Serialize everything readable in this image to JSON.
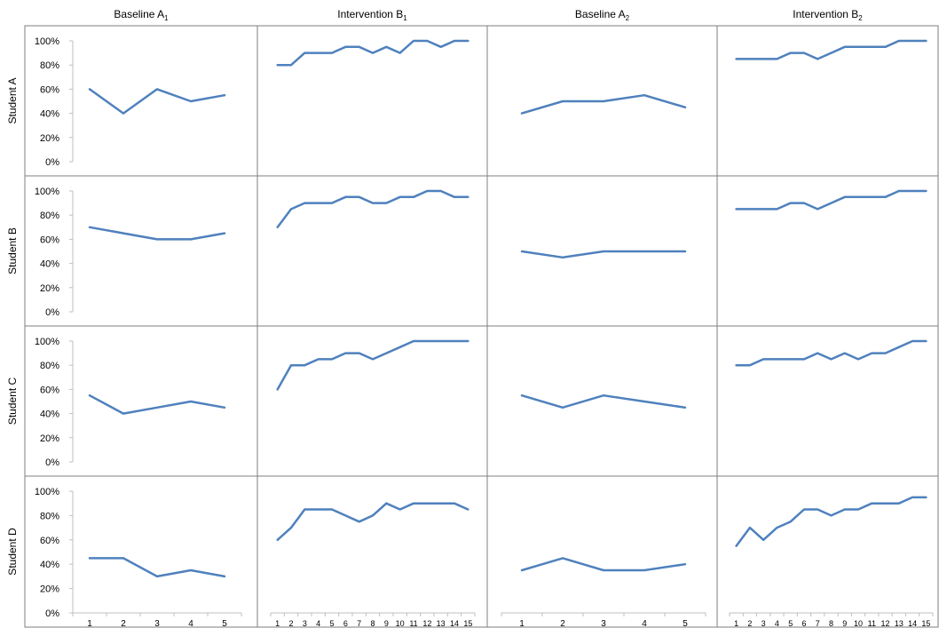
{
  "chart_data": {
    "type": "line",
    "y_ticks": [
      "0%",
      "20%",
      "40%",
      "60%",
      "80%",
      "100%"
    ],
    "ylim": [
      0,
      100
    ],
    "line_color": "#4f81bd",
    "columns": [
      {
        "title": "Baseline A",
        "sub": "1",
        "x": [
          1,
          2,
          3,
          4,
          5
        ]
      },
      {
        "title": "Intervention B",
        "sub": "1",
        "x": [
          1,
          2,
          3,
          4,
          5,
          6,
          7,
          8,
          9,
          10,
          11,
          12,
          13,
          14,
          15
        ]
      },
      {
        "title": "Baseline A",
        "sub": "2",
        "x": [
          1,
          2,
          3,
          4,
          5
        ]
      },
      {
        "title": "Intervention B",
        "sub": "2",
        "x": [
          1,
          2,
          3,
          4,
          5,
          6,
          7,
          8,
          9,
          10,
          11,
          12,
          13,
          14,
          15
        ]
      }
    ],
    "rows": [
      {
        "label": "Student A",
        "series": [
          [
            60,
            40,
            60,
            50,
            55
          ],
          [
            80,
            80,
            90,
            90,
            90,
            95,
            95,
            90,
            95,
            90,
            100,
            100,
            95,
            100,
            100
          ],
          [
            40,
            50,
            50,
            55,
            45
          ],
          [
            85,
            85,
            85,
            85,
            90,
            90,
            85,
            90,
            95,
            95,
            95,
            95,
            100,
            100,
            100
          ]
        ]
      },
      {
        "label": "Student B",
        "series": [
          [
            70,
            65,
            60,
            60,
            65
          ],
          [
            70,
            85,
            90,
            90,
            90,
            95,
            95,
            90,
            90,
            95,
            95,
            100,
            100,
            95,
            95
          ],
          [
            50,
            45,
            50,
            50,
            50
          ],
          [
            85,
            85,
            85,
            85,
            90,
            90,
            85,
            90,
            95,
            95,
            95,
            95,
            100,
            100,
            100
          ]
        ]
      },
      {
        "label": "Student C",
        "series": [
          [
            55,
            40,
            45,
            50,
            45
          ],
          [
            60,
            80,
            80,
            85,
            85,
            90,
            90,
            85,
            90,
            95,
            100,
            100,
            100,
            100,
            100
          ],
          [
            55,
            45,
            55,
            50,
            45
          ],
          [
            80,
            80,
            85,
            85,
            85,
            85,
            90,
            85,
            90,
            85,
            90,
            90,
            95,
            100,
            100
          ]
        ]
      },
      {
        "label": "Student D",
        "series": [
          [
            45,
            45,
            30,
            35,
            30
          ],
          [
            60,
            70,
            85,
            85,
            85,
            80,
            75,
            80,
            90,
            85,
            90,
            90,
            90,
            90,
            85
          ],
          [
            35,
            45,
            35,
            35,
            40
          ],
          [
            55,
            70,
            60,
            70,
            75,
            85,
            85,
            80,
            85,
            85,
            90,
            90,
            90,
            95,
            95
          ]
        ]
      }
    ]
  }
}
